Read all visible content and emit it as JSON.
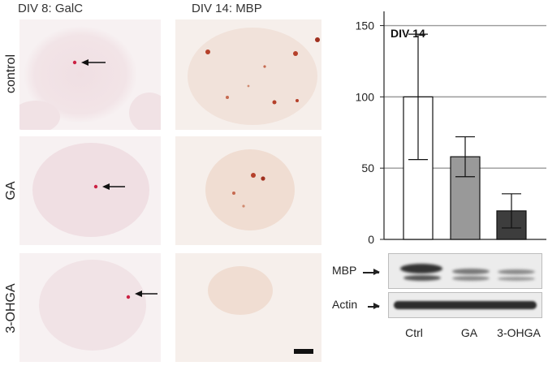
{
  "figure": {
    "columns": [
      "DIV 8: GalC",
      "DIV 14: MBP"
    ],
    "rows": [
      "control",
      "GA",
      "3-OHGA"
    ]
  },
  "chart_data": {
    "type": "bar",
    "title": "DIV 14",
    "categories": [
      "Ctrl",
      "GA",
      "3-OHGA"
    ],
    "values": [
      100,
      58,
      20
    ],
    "error": [
      44,
      14,
      12
    ],
    "ylim": [
      0,
      160
    ],
    "yticks": [
      0,
      50,
      100,
      150
    ],
    "grid": true,
    "bar_colors": [
      "#ffffff",
      "#999999",
      "#3d3d3d"
    ]
  },
  "blot": {
    "labels": [
      "MBP",
      "Actin"
    ],
    "lanes": [
      "Ctrl",
      "GA",
      "3-OHGA"
    ]
  },
  "colors": {
    "stain_galc": "#cc2244",
    "stain_mbp": "#b5402a",
    "bar_edge": "#111111"
  }
}
